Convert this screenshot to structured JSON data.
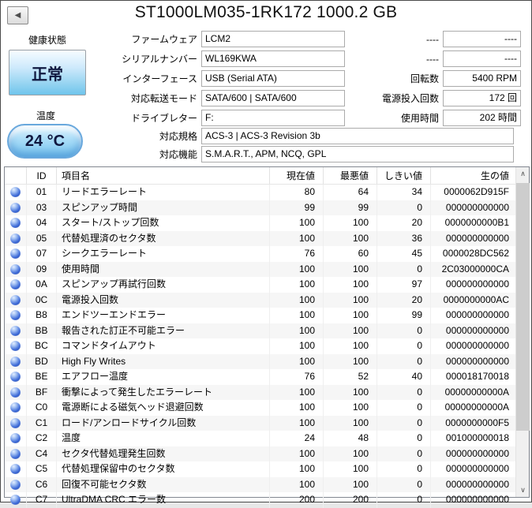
{
  "window": {
    "title": "ST1000LM035-1RK172 1000.2 GB"
  },
  "icons": {
    "back": "◀",
    "scroll_up": "∧",
    "scroll_down": "∨"
  },
  "colors": {
    "accent-blue": "#8ed1f0",
    "orb-blue": "#1f3f9e",
    "row-stripe": "#f6f6f6"
  },
  "health": {
    "label": "健康状態",
    "status": "正常",
    "temp_label": "温度",
    "temp_value": "24 °C"
  },
  "fields": {
    "firmware": {
      "label": "ファームウェア",
      "value": "LCM2"
    },
    "serial": {
      "label": "シリアルナンバー",
      "value": "WL169KWA"
    },
    "interface": {
      "label": "インターフェース",
      "value": "USB (Serial ATA)"
    },
    "transfer_mode": {
      "label": "対応転送モード",
      "value": "SATA/600 | SATA/600"
    },
    "drive_letter": {
      "label": "ドライブレター",
      "value": "F:"
    },
    "standard": {
      "label": "対応規格",
      "value": "ACS-3 | ACS-3 Revision 3b"
    },
    "features": {
      "label": "対応機能",
      "value": "S.M.A.R.T., APM, NCQ, GPL"
    }
  },
  "right_fields": [
    {
      "label": "----",
      "value": "----"
    },
    {
      "label": "----",
      "value": "----"
    },
    {
      "label": "回転数",
      "value": "5400 RPM"
    },
    {
      "label": "電源投入回数",
      "value": "172 回"
    },
    {
      "label": "使用時間",
      "value": "202 時間"
    }
  ],
  "table": {
    "headers": [
      "ID",
      "項目名",
      "現在値",
      "最悪値",
      "しきい値",
      "生の値"
    ],
    "rows": [
      {
        "id": "01",
        "name": "リードエラーレート",
        "current": "80",
        "worst": "64",
        "threshold": "34",
        "raw": "0000062D915F"
      },
      {
        "id": "03",
        "name": "スピンアップ時間",
        "current": "99",
        "worst": "99",
        "threshold": "0",
        "raw": "000000000000"
      },
      {
        "id": "04",
        "name": "スタート/ストップ回数",
        "current": "100",
        "worst": "100",
        "threshold": "20",
        "raw": "0000000000B1"
      },
      {
        "id": "05",
        "name": "代替処理済のセクタ数",
        "current": "100",
        "worst": "100",
        "threshold": "36",
        "raw": "000000000000"
      },
      {
        "id": "07",
        "name": "シークエラーレート",
        "current": "76",
        "worst": "60",
        "threshold": "45",
        "raw": "0000028DC562"
      },
      {
        "id": "09",
        "name": "使用時間",
        "current": "100",
        "worst": "100",
        "threshold": "0",
        "raw": "2C03000000CA"
      },
      {
        "id": "0A",
        "name": "スピンアップ再試行回数",
        "current": "100",
        "worst": "100",
        "threshold": "97",
        "raw": "000000000000"
      },
      {
        "id": "0C",
        "name": "電源投入回数",
        "current": "100",
        "worst": "100",
        "threshold": "20",
        "raw": "0000000000AC"
      },
      {
        "id": "B8",
        "name": "エンドツーエンドエラー",
        "current": "100",
        "worst": "100",
        "threshold": "99",
        "raw": "000000000000"
      },
      {
        "id": "BB",
        "name": "報告された訂正不可能エラー",
        "current": "100",
        "worst": "100",
        "threshold": "0",
        "raw": "000000000000"
      },
      {
        "id": "BC",
        "name": "コマンドタイムアウト",
        "current": "100",
        "worst": "100",
        "threshold": "0",
        "raw": "000000000000"
      },
      {
        "id": "BD",
        "name": "High Fly Writes",
        "current": "100",
        "worst": "100",
        "threshold": "0",
        "raw": "000000000000"
      },
      {
        "id": "BE",
        "name": "エアフロー温度",
        "current": "76",
        "worst": "52",
        "threshold": "40",
        "raw": "000018170018"
      },
      {
        "id": "BF",
        "name": "衝撃によって発生したエラーレート",
        "current": "100",
        "worst": "100",
        "threshold": "0",
        "raw": "00000000000A"
      },
      {
        "id": "C0",
        "name": "電源断による磁気ヘッド退避回数",
        "current": "100",
        "worst": "100",
        "threshold": "0",
        "raw": "00000000000A"
      },
      {
        "id": "C1",
        "name": "ロード/アンロードサイクル回数",
        "current": "100",
        "worst": "100",
        "threshold": "0",
        "raw": "0000000000F5"
      },
      {
        "id": "C2",
        "name": "温度",
        "current": "24",
        "worst": "48",
        "threshold": "0",
        "raw": "001000000018"
      },
      {
        "id": "C4",
        "name": "セクタ代替処理発生回数",
        "current": "100",
        "worst": "100",
        "threshold": "0",
        "raw": "000000000000"
      },
      {
        "id": "C5",
        "name": "代替処理保留中のセクタ数",
        "current": "100",
        "worst": "100",
        "threshold": "0",
        "raw": "000000000000"
      },
      {
        "id": "C6",
        "name": "回復不可能セクタ数",
        "current": "100",
        "worst": "100",
        "threshold": "0",
        "raw": "000000000000"
      },
      {
        "id": "C7",
        "name": "UltraDMA CRC エラー数",
        "current": "200",
        "worst": "200",
        "threshold": "0",
        "raw": "000000000000"
      }
    ]
  }
}
